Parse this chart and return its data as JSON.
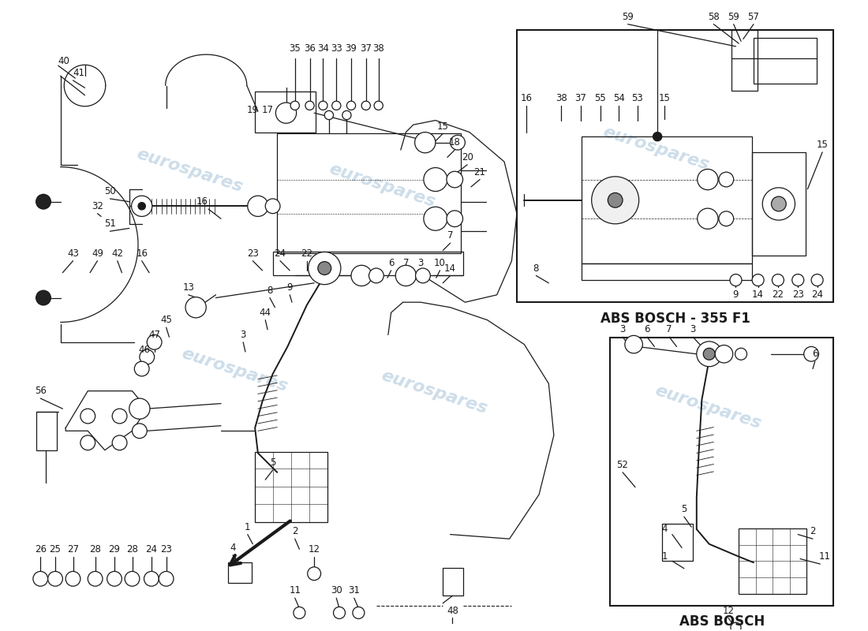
{
  "bg_color": "#ffffff",
  "line_color": "#1a1a1a",
  "watermark_color": "#b8cfe0",
  "abs_bosch_355f1_label": "ABS BOSCH - 355 F1",
  "abs_bosch_label": "ABS BOSCH",
  "font_size_labels": 8.5,
  "font_size_box_title": 12,
  "figwidth": 11.0,
  "figheight": 8.0,
  "dpi": 100,
  "xlim": [
    0,
    11
  ],
  "ylim": [
    0,
    8.5
  ]
}
